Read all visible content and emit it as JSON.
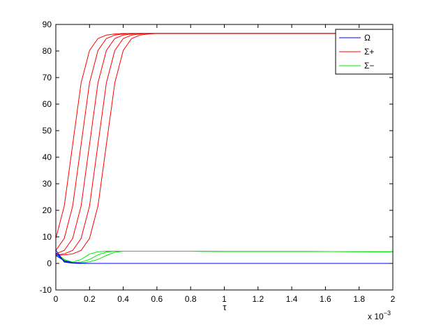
{
  "chart_data": {
    "type": "line",
    "x_label": "τ",
    "x_multiplier": {
      "base": "x 10",
      "exponent": "−3"
    },
    "x": [
      0,
      0.05,
      0.1,
      0.15,
      0.2,
      0.25,
      0.3,
      0.35,
      0.4,
      0.45,
      0.5,
      0.55,
      0.6,
      0.8,
      1,
      1.5,
      2
    ],
    "xlim": [
      0,
      2
    ],
    "xticks": [
      0,
      0.2,
      0.4,
      0.6,
      0.8,
      1,
      1.2,
      1.4,
      1.6,
      1.8,
      2
    ],
    "ylim": [
      -10,
      90
    ],
    "yticks": [
      -10,
      0,
      10,
      20,
      30,
      40,
      50,
      60,
      70,
      80,
      90
    ],
    "legend": "top-right",
    "series": [
      {
        "name": "Ω",
        "color": "#0000ff",
        "values": [
          [
            5,
            0.5,
            0.1,
            0,
            0,
            0,
            0,
            0,
            0,
            0,
            0,
            0,
            0,
            0,
            0,
            0,
            0
          ],
          [
            4,
            0.8,
            0.2,
            0,
            0,
            0,
            0,
            0,
            0,
            0,
            0,
            0,
            0,
            0,
            0,
            0,
            0
          ],
          [
            3,
            1,
            0.3,
            0.1,
            0,
            0,
            0,
            0,
            0,
            0,
            0,
            0,
            0,
            0,
            0,
            0,
            0
          ]
        ]
      },
      {
        "name": "Σ+",
        "color": "#ff0000",
        "values": [
          [
            9.4,
            21.6,
            44.8,
            68.0,
            80.2,
            84.7,
            86.0,
            86.4,
            86.6,
            86.6,
            86.6,
            86.6,
            86.6,
            86.6,
            86.6,
            86.6,
            86.6
          ],
          [
            4.9,
            9.4,
            21.6,
            44.8,
            68.0,
            80.2,
            84.7,
            86.0,
            86.4,
            86.6,
            86.6,
            86.6,
            86.6,
            86.6,
            86.6,
            86.6,
            86.6
          ],
          [
            3.6,
            4.9,
            9.4,
            21.6,
            44.8,
            68.0,
            80.2,
            84.7,
            86.0,
            86.4,
            86.6,
            86.6,
            86.6,
            86.6,
            86.6,
            86.6,
            86.6
          ],
          [
            3.2,
            3.6,
            4.9,
            9.4,
            21.6,
            44.8,
            68.0,
            80.2,
            84.7,
            86.0,
            86.4,
            86.6,
            86.6,
            86.6,
            86.6,
            86.6,
            86.6
          ],
          [
            3.1,
            3.2,
            3.6,
            4.9,
            9.4,
            21.6,
            44.8,
            68.0,
            80.2,
            84.7,
            86.0,
            86.4,
            86.6,
            86.6,
            86.6,
            86.6,
            86.6
          ]
        ]
      },
      {
        "name": "Σ−",
        "color": "#00ee00",
        "values": [
          [
            4,
            1.5,
            0.5,
            1.5,
            3.5,
            4.4,
            4.6,
            4.6,
            4.6,
            4.6,
            4.6,
            4.6,
            4.6,
            4.6,
            4.5,
            4.5,
            4.4
          ],
          [
            3.5,
            1.2,
            0.3,
            0.5,
            1.5,
            3.2,
            4.3,
            4.6,
            4.6,
            4.6,
            4.6,
            4.6,
            4.6,
            4.6,
            4.5,
            4.5,
            4.4
          ],
          [
            3,
            1,
            0.2,
            0.2,
            0.6,
            1.5,
            3,
            4.2,
            4.6,
            4.6,
            4.6,
            4.6,
            4.6,
            4.6,
            4.5,
            4.5,
            4.4
          ]
        ]
      }
    ]
  }
}
